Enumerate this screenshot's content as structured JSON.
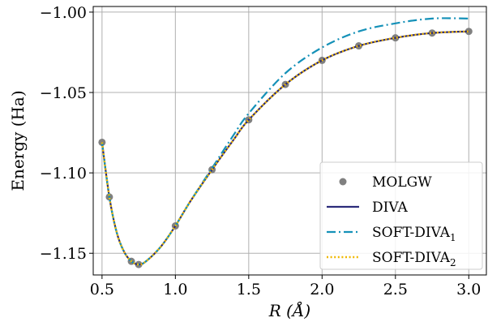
{
  "chart_data": {
    "type": "line",
    "xlabel": "R (Å)",
    "ylabel": "Energy (Ha)",
    "xlim": [
      0.44,
      3.12
    ],
    "ylim": [
      -1.1635,
      -0.9965
    ],
    "x_ticks": [
      0.5,
      1.0,
      1.5,
      2.0,
      2.5,
      3.0
    ],
    "x_tick_labels": [
      "0.5",
      "1.0",
      "1.5",
      "2.0",
      "2.5",
      "3.0"
    ],
    "y_ticks": [
      -1.15,
      -1.1,
      -1.05,
      -1.0
    ],
    "y_tick_labels": [
      "−1.15",
      "−1.10",
      "−1.05",
      "−1.00"
    ],
    "grid": true,
    "legend_position": "bottom-right",
    "series": [
      {
        "name": "MOLGW",
        "style": "markers",
        "color": "#808080",
        "x": [
          0.5,
          0.55,
          0.7,
          0.75,
          1.0,
          1.25,
          1.5,
          1.75,
          2.0,
          2.25,
          2.5,
          2.75,
          3.0
        ],
        "y": [
          -1.081,
          -1.115,
          -1.155,
          -1.157,
          -1.133,
          -1.098,
          -1.067,
          -1.045,
          -1.03,
          -1.021,
          -1.016,
          -1.013,
          -1.012
        ]
      },
      {
        "name": "DIVA",
        "style": "solid",
        "color": "#2b2b7a",
        "x": [
          0.5,
          0.55,
          0.6,
          0.65,
          0.7,
          0.75,
          0.8,
          0.9,
          1.0,
          1.1,
          1.25,
          1.4,
          1.5,
          1.75,
          2.0,
          2.25,
          2.5,
          2.75,
          3.0
        ],
        "y": [
          -1.081,
          -1.115,
          -1.137,
          -1.149,
          -1.155,
          -1.157,
          -1.155,
          -1.146,
          -1.133,
          -1.118,
          -1.098,
          -1.079,
          -1.067,
          -1.045,
          -1.03,
          -1.021,
          -1.016,
          -1.013,
          -1.012
        ]
      },
      {
        "name": "SOFT-DIVA",
        "sub": "1",
        "style": "dashdot",
        "color": "#1591b8",
        "x": [
          0.5,
          0.55,
          0.6,
          0.65,
          0.7,
          0.75,
          0.8,
          0.9,
          1.0,
          1.1,
          1.25,
          1.4,
          1.5,
          1.75,
          2.0,
          2.25,
          2.5,
          2.75,
          3.0
        ],
        "y": [
          -1.081,
          -1.115,
          -1.137,
          -1.149,
          -1.155,
          -1.157,
          -1.155,
          -1.146,
          -1.133,
          -1.118,
          -1.097,
          -1.076,
          -1.063,
          -1.038,
          -1.022,
          -1.012,
          -1.007,
          -1.004,
          -1.004
        ]
      },
      {
        "name": "SOFT-DIVA",
        "sub": "2",
        "style": "dotted",
        "color": "#f0b800",
        "x": [
          0.5,
          0.55,
          0.6,
          0.65,
          0.7,
          0.75,
          0.8,
          0.9,
          1.0,
          1.1,
          1.25,
          1.4,
          1.5,
          1.75,
          2.0,
          2.25,
          2.5,
          2.75,
          3.0
        ],
        "y": [
          -1.081,
          -1.115,
          -1.137,
          -1.149,
          -1.155,
          -1.157,
          -1.155,
          -1.146,
          -1.133,
          -1.118,
          -1.098,
          -1.079,
          -1.067,
          -1.045,
          -1.03,
          -1.021,
          -1.016,
          -1.013,
          -1.012
        ]
      }
    ]
  }
}
